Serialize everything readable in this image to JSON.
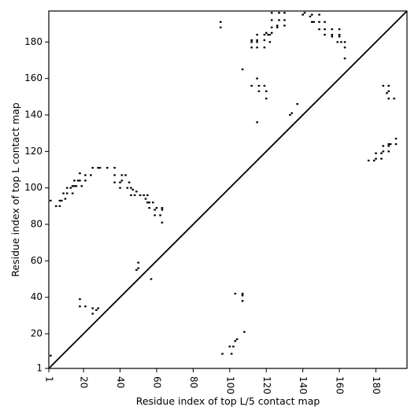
{
  "chart_data": {
    "type": "scatter",
    "title": "",
    "xlabel": "Residue index of top L/5 contact map",
    "ylabel": "Residue index of top L contact map",
    "xlim": [
      1,
      197
    ],
    "ylim": [
      1,
      197
    ],
    "xticks": [
      1,
      20,
      40,
      60,
      80,
      100,
      120,
      140,
      160,
      180
    ],
    "yticks": [
      1,
      20,
      40,
      60,
      80,
      100,
      120,
      140,
      160,
      180
    ],
    "grid": false,
    "legend": "none",
    "diagonal": true,
    "marker_color": "#000000",
    "series": [
      {
        "values": [
          [
            2,
            8
          ],
          [
            96,
            9
          ],
          [
            101,
            9
          ],
          [
            100,
            13
          ],
          [
            102,
            13
          ],
          [
            103,
            16
          ],
          [
            104,
            17
          ],
          [
            108,
            21
          ],
          [
            103,
            42
          ],
          [
            107,
            38
          ],
          [
            107,
            41
          ],
          [
            107,
            42
          ],
          [
            57,
            50
          ],
          [
            49,
            55
          ],
          [
            50,
            56
          ],
          [
            50,
            59
          ],
          [
            18,
            35
          ],
          [
            18,
            39
          ],
          [
            21,
            35
          ],
          [
            25,
            31
          ],
          [
            25,
            34
          ],
          [
            27,
            33
          ],
          [
            28,
            34
          ]
        ]
      },
      {
        "values": [
          [
            2,
            93
          ],
          [
            5,
            90
          ],
          [
            7,
            90
          ],
          [
            7,
            93
          ],
          [
            8,
            93
          ],
          [
            9,
            97
          ],
          [
            10,
            94
          ],
          [
            11,
            97
          ],
          [
            11,
            100
          ],
          [
            13,
            100
          ],
          [
            14,
            97
          ],
          [
            14,
            101
          ],
          [
            15,
            101
          ],
          [
            15,
            104
          ],
          [
            16,
            101
          ],
          [
            17,
            104
          ],
          [
            18,
            104
          ],
          [
            18,
            108
          ],
          [
            19,
            101
          ],
          [
            21,
            104
          ],
          [
            21,
            107
          ],
          [
            24,
            107
          ],
          [
            25,
            111
          ],
          [
            28,
            111
          ],
          [
            29,
            111
          ],
          [
            33,
            111
          ],
          [
            37,
            103
          ],
          [
            37,
            107
          ],
          [
            37,
            111
          ],
          [
            40,
            100
          ],
          [
            40,
            103
          ],
          [
            41,
            104
          ],
          [
            41,
            107
          ],
          [
            43,
            107
          ],
          [
            44,
            100
          ],
          [
            45,
            103
          ],
          [
            46,
            96
          ],
          [
            46,
            100
          ],
          [
            47,
            99
          ],
          [
            48,
            96
          ],
          [
            49,
            98
          ],
          [
            51,
            96
          ],
          [
            53,
            96
          ],
          [
            54,
            94
          ],
          [
            55,
            92
          ],
          [
            55,
            96
          ],
          [
            56,
            89
          ],
          [
            56,
            92
          ],
          [
            58,
            92
          ],
          [
            59,
            85
          ],
          [
            59,
            88
          ],
          [
            60,
            89
          ],
          [
            62,
            85
          ],
          [
            63,
            81
          ],
          [
            63,
            88
          ],
          [
            63,
            89
          ]
        ]
      },
      {
        "values": [
          [
            95,
            188
          ],
          [
            95,
            191
          ],
          [
            107,
            165
          ],
          [
            112,
            156
          ],
          [
            112,
            177
          ],
          [
            112,
            180
          ],
          [
            112,
            181
          ],
          [
            115,
            136
          ],
          [
            115,
            160
          ],
          [
            115,
            177
          ],
          [
            115,
            180
          ],
          [
            115,
            181
          ],
          [
            115,
            184
          ],
          [
            116,
            153
          ],
          [
            116,
            156
          ],
          [
            119,
            156
          ],
          [
            119,
            177
          ],
          [
            119,
            181
          ],
          [
            119,
            184
          ],
          [
            120,
            149
          ],
          [
            120,
            153
          ],
          [
            120,
            185
          ],
          [
            121,
            184
          ],
          [
            122,
            180
          ],
          [
            122,
            184
          ],
          [
            123,
            185
          ],
          [
            123,
            188
          ],
          [
            123,
            192
          ],
          [
            123,
            196
          ],
          [
            126,
            188
          ],
          [
            126,
            189
          ],
          [
            127,
            192
          ],
          [
            127,
            196
          ],
          [
            130,
            189
          ],
          [
            130,
            192
          ],
          [
            130,
            196
          ],
          [
            133,
            140
          ],
          [
            134,
            141
          ],
          [
            137,
            146
          ],
          [
            140,
            195
          ],
          [
            141,
            196
          ],
          [
            144,
            194
          ],
          [
            145,
            191
          ],
          [
            145,
            195
          ],
          [
            146,
            191
          ],
          [
            149,
            187
          ],
          [
            149,
            191
          ],
          [
            149,
            195
          ],
          [
            152,
            184
          ],
          [
            152,
            187
          ],
          [
            152,
            191
          ],
          [
            156,
            183
          ],
          [
            156,
            184
          ],
          [
            156,
            187
          ],
          [
            159,
            180
          ],
          [
            160,
            183
          ],
          [
            160,
            184
          ],
          [
            160,
            187
          ],
          [
            161,
            180
          ],
          [
            163,
            171
          ],
          [
            163,
            177
          ],
          [
            163,
            180
          ],
          [
            176,
            115
          ],
          [
            179,
            115
          ],
          [
            180,
            116
          ],
          [
            180,
            119
          ],
          [
            183,
            116
          ],
          [
            183,
            119
          ],
          [
            184,
            120
          ],
          [
            184,
            123
          ],
          [
            184,
            156
          ],
          [
            186,
            152
          ],
          [
            187,
            120
          ],
          [
            187,
            123
          ],
          [
            187,
            124
          ],
          [
            187,
            149
          ],
          [
            187,
            153
          ],
          [
            187,
            156
          ],
          [
            188,
            124
          ],
          [
            190,
            149
          ],
          [
            191,
            124
          ],
          [
            191,
            127
          ]
        ]
      }
    ]
  }
}
